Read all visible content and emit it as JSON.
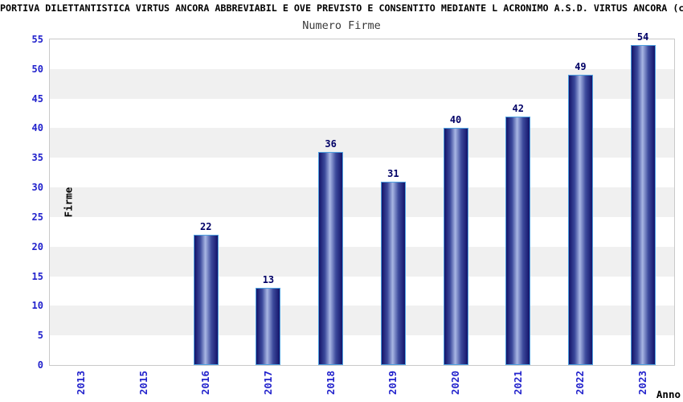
{
  "chart_data": {
    "type": "bar",
    "title": "PORTIVA DILETTANTISTICA VIRTUS ANCORA ABBREVIABIL E OVE PREVISTO E CONSENTITO MEDIANTE L ACRONIMO A.S.D. VIRTUS ANCORA (c.",
    "subtitle": "Numero Firme",
    "xlabel": "Anno",
    "ylabel": "Firme",
    "categories": [
      "2013",
      "2015",
      "2016",
      "2017",
      "2018",
      "2019",
      "2020",
      "2021",
      "2022",
      "2023"
    ],
    "values": [
      0,
      0,
      22,
      13,
      36,
      31,
      40,
      42,
      49,
      54
    ],
    "yticks": [
      0,
      5,
      10,
      15,
      20,
      25,
      30,
      35,
      40,
      45,
      50,
      55
    ],
    "ylim": [
      0,
      55
    ],
    "grid": "horizontal-bands-alternating",
    "legend": "none"
  },
  "colors": {
    "background": "#ffffff",
    "title": "#000000",
    "subtitle": "#3a3a3a",
    "axis_text": "#2222cc",
    "axis_title": "#000000",
    "value_label": "#000066",
    "band": "#f0f0f0",
    "plot_border": "#c9c9c9",
    "bar_border": "#4da0e0",
    "bar_dark": "#14146a",
    "bar_mid": "#3c4a9c",
    "bar_light": "#a8b6e4"
  }
}
